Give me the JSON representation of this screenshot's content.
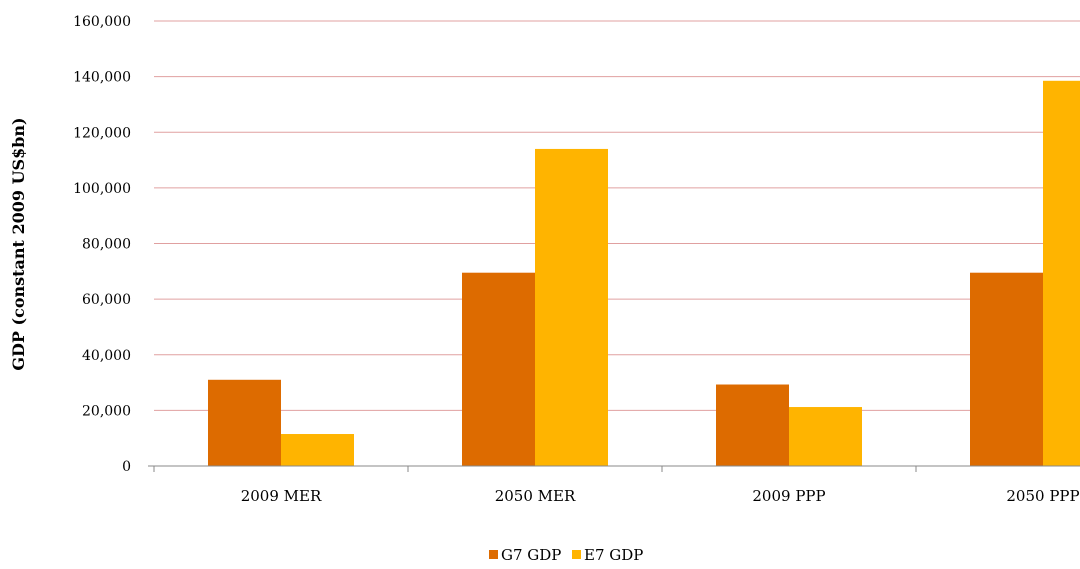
{
  "chart_data": {
    "type": "bar",
    "title": "",
    "xlabel": "",
    "ylabel": "GDP (constant 2009 US$bn)",
    "categories": [
      "2009 MER",
      "2050 MER",
      "2009 PPP",
      "2050 PPP"
    ],
    "series": [
      {
        "name": "G7 GDP",
        "color": "#dd6b00",
        "values": [
          31000,
          69500,
          29300,
          69500
        ]
      },
      {
        "name": "E7 GDP",
        "color": "#ffb400",
        "values": [
          11500,
          114000,
          21200,
          138500
        ]
      }
    ],
    "ylim": [
      0,
      160000
    ],
    "yticks": [
      0,
      20000,
      40000,
      60000,
      80000,
      100000,
      120000,
      140000,
      160000
    ],
    "ytick_labels": [
      "0",
      "20,000",
      "40,000",
      "60,000",
      "80,000",
      "100,000",
      "120,000",
      "140,000",
      "160,000"
    ],
    "grid": true,
    "gridline_color": "#e0a0a0",
    "legend_position": "bottom"
  }
}
